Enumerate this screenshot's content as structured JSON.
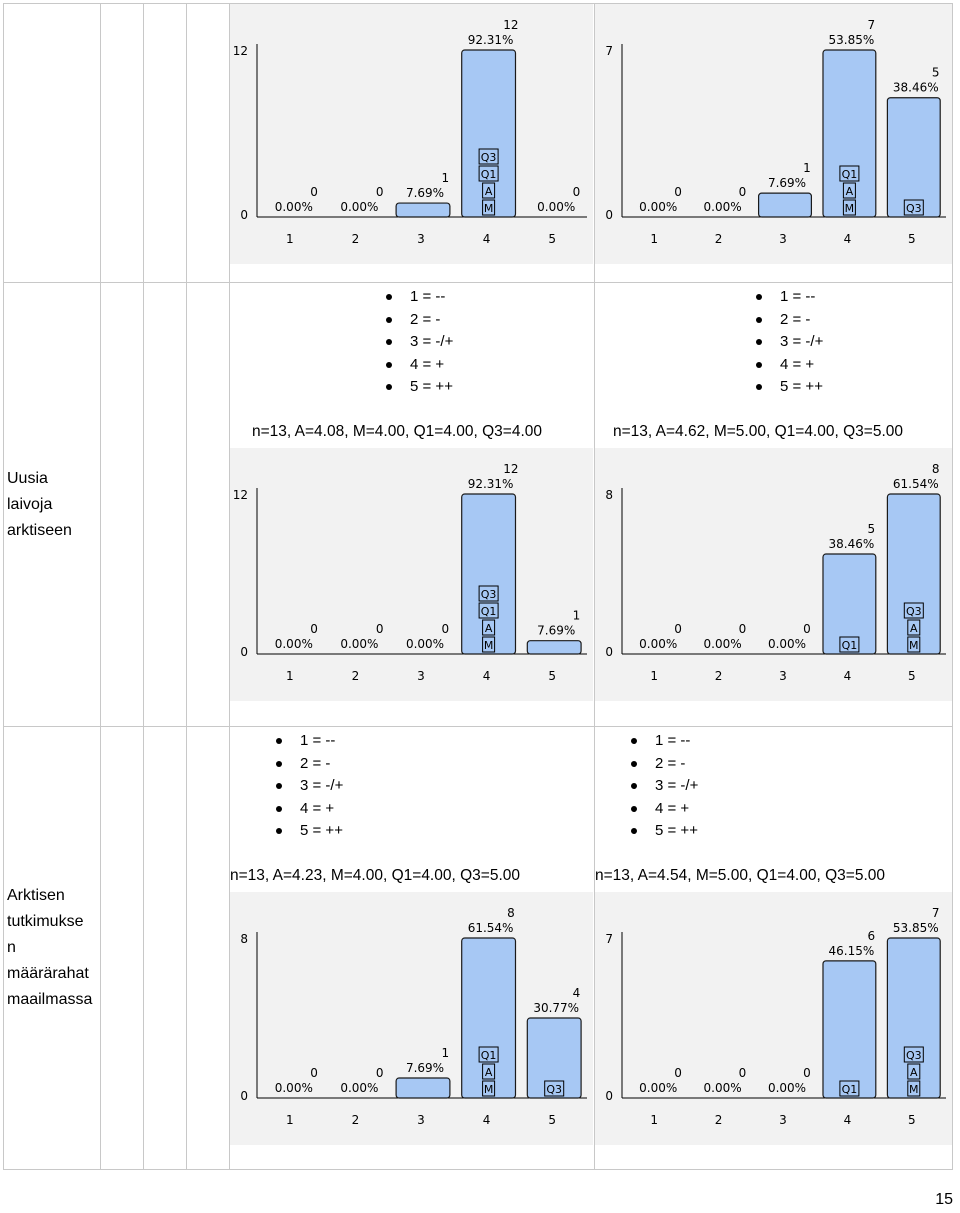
{
  "rows": [
    {
      "label_lines": [],
      "cells": [
        {
          "legend": [],
          "stats": "",
          "chart_data": {
            "type": "bar",
            "categories": [
              "1",
              "2",
              "3",
              "4",
              "5"
            ],
            "ymax_label": "12",
            "ymin_label": "0",
            "counts": [
              "0",
              "0",
              "1",
              "12",
              "0"
            ],
            "percents": [
              "0.00%",
              "0.00%",
              "7.69%",
              "92.31%",
              "0.00%"
            ],
            "values": [
              0,
              0,
              1,
              12,
              0
            ],
            "ylim": [
              0,
              12
            ],
            "markers": [
              {
                "category": 4,
                "labels": [
                  "Q3",
                  "Q1",
                  "A",
                  "M"
                ]
              }
            ]
          }
        },
        {
          "legend": [],
          "stats": "",
          "chart_data": {
            "type": "bar",
            "categories": [
              "1",
              "2",
              "3",
              "4",
              "5"
            ],
            "ymax_label": "7",
            "ymin_label": "0",
            "counts": [
              "0",
              "0",
              "1",
              "7",
              "5"
            ],
            "percents": [
              "0.00%",
              "0.00%",
              "7.69%",
              "53.85%",
              "38.46%"
            ],
            "values": [
              0,
              0,
              1,
              7,
              5
            ],
            "ylim": [
              0,
              7
            ],
            "markers": [
              {
                "category": 4,
                "labels": [
                  "Q1",
                  "A",
                  "M"
                ]
              },
              {
                "category": 5,
                "labels": [
                  "Q3"
                ]
              }
            ]
          }
        }
      ]
    },
    {
      "label_lines": [
        "Uusia",
        "laivoja",
        "arktiseen"
      ],
      "cells": [
        {
          "legend": [
            "1 = --",
            "2 = -",
            "3 = -/+",
            "4 = +",
            "5 = ++"
          ],
          "stats": "n=13, A=4.08, M=4.00, Q1=4.00, Q3=4.00",
          "chart_data": {
            "type": "bar",
            "categories": [
              "1",
              "2",
              "3",
              "4",
              "5"
            ],
            "ymax_label": "12",
            "ymin_label": "0",
            "counts": [
              "0",
              "0",
              "0",
              "12",
              "1"
            ],
            "percents": [
              "0.00%",
              "0.00%",
              "0.00%",
              "92.31%",
              "7.69%"
            ],
            "values": [
              0,
              0,
              0,
              12,
              1
            ],
            "ylim": [
              0,
              12
            ],
            "markers": [
              {
                "category": 4,
                "labels": [
                  "Q3",
                  "Q1",
                  "A",
                  "M"
                ]
              }
            ]
          }
        },
        {
          "legend": [
            "1 = --",
            "2 = -",
            "3 = -/+",
            "4 = +",
            "5 = ++"
          ],
          "stats": "n=13, A=4.62, M=5.00, Q1=4.00, Q3=5.00",
          "chart_data": {
            "type": "bar",
            "categories": [
              "1",
              "2",
              "3",
              "4",
              "5"
            ],
            "ymax_label": "8",
            "ymin_label": "0",
            "counts": [
              "0",
              "0",
              "0",
              "5",
              "8"
            ],
            "percents": [
              "0.00%",
              "0.00%",
              "0.00%",
              "38.46%",
              "61.54%"
            ],
            "values": [
              0,
              0,
              0,
              5,
              8
            ],
            "ylim": [
              0,
              8
            ],
            "markers": [
              {
                "category": 4,
                "labels": [
                  "Q1"
                ]
              },
              {
                "category": 5,
                "labels": [
                  "Q3",
                  "A",
                  "M"
                ]
              }
            ]
          }
        }
      ]
    },
    {
      "label_lines": [
        "Arktisen",
        "tutkimukse",
        "n",
        "määrärahat",
        "maailmassa"
      ],
      "cells": [
        {
          "legend": [
            "1 = --",
            "2 = -",
            "3 = -/+",
            "4 = +",
            "5 = ++"
          ],
          "stats": "n=13, A=4.23, M=4.00, Q1=4.00, Q3=5.00",
          "chart_data": {
            "type": "bar",
            "categories": [
              "1",
              "2",
              "3",
              "4",
              "5"
            ],
            "ymax_label": "8",
            "ymin_label": "0",
            "counts": [
              "0",
              "0",
              "1",
              "8",
              "4"
            ],
            "percents": [
              "0.00%",
              "0.00%",
              "7.69%",
              "61.54%",
              "30.77%"
            ],
            "values": [
              0,
              0,
              1,
              8,
              4
            ],
            "ylim": [
              0,
              8
            ],
            "markers": [
              {
                "category": 4,
                "labels": [
                  "Q1",
                  "A",
                  "M"
                ]
              },
              {
                "category": 5,
                "labels": [
                  "Q3"
                ]
              }
            ]
          }
        },
        {
          "legend": [
            "1 = --",
            "2 = -",
            "3 = -/+",
            "4 = +",
            "5 = ++"
          ],
          "stats": "n=13, A=4.54, M=5.00, Q1=4.00, Q3=5.00",
          "chart_data": {
            "type": "bar",
            "categories": [
              "1",
              "2",
              "3",
              "4",
              "5"
            ],
            "ymax_label": "7",
            "ymin_label": "0",
            "counts": [
              "0",
              "0",
              "0",
              "6",
              "7"
            ],
            "percents": [
              "0.00%",
              "0.00%",
              "0.00%",
              "46.15%",
              "53.85%"
            ],
            "values": [
              0,
              0,
              0,
              6,
              7
            ],
            "ylim": [
              0,
              7
            ],
            "markers": [
              {
                "category": 4,
                "labels": [
                  "Q1"
                ]
              },
              {
                "category": 5,
                "labels": [
                  "Q3",
                  "A",
                  "M"
                ]
              }
            ]
          }
        }
      ]
    }
  ],
  "colors": {
    "bar_fill": "#a7c8f4",
    "bar_stroke": "#1a1a1a",
    "chart_bg": "#f2f2f2",
    "grid_border": "#c8c8c8"
  },
  "page_number": "15"
}
